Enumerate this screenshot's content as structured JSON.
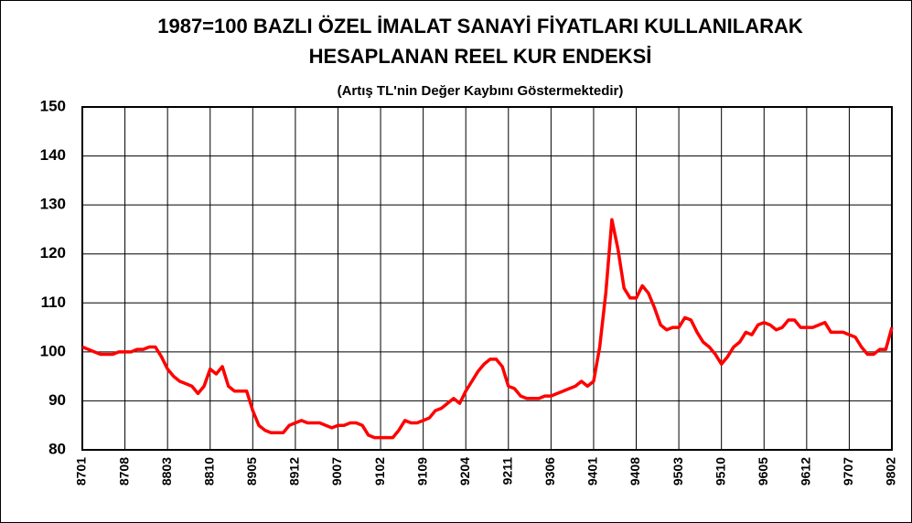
{
  "chart_data": {
    "type": "line",
    "title": [
      "1987=100 BAZLI ÖZEL İMALAT SANAYİ FİYATLARI KULLANILARAK",
      "HESAPLANAN REEL KUR ENDEKSİ"
    ],
    "subtitle": "(Artış TL'nin Değer Kaybını Göstermektedir)",
    "categories": [
      "8701",
      null,
      null,
      null,
      null,
      null,
      null,
      "8708",
      null,
      null,
      null,
      null,
      null,
      null,
      "8803",
      null,
      null,
      null,
      null,
      null,
      null,
      "8810",
      null,
      null,
      null,
      null,
      null,
      null,
      "8905",
      null,
      null,
      null,
      null,
      null,
      null,
      "8912",
      null,
      null,
      null,
      null,
      null,
      null,
      "9007",
      null,
      null,
      null,
      null,
      null,
      null,
      "9102",
      null,
      null,
      null,
      null,
      null,
      null,
      "9109",
      null,
      null,
      null,
      null,
      null,
      null,
      "9204",
      null,
      null,
      null,
      null,
      null,
      null,
      "9211",
      null,
      null,
      null,
      null,
      null,
      null,
      "9306",
      null,
      null,
      null,
      null,
      null,
      null,
      "9401",
      null,
      null,
      null,
      null,
      null,
      null,
      "9408",
      null,
      null,
      null,
      null,
      null,
      null,
      "9503",
      null,
      null,
      null,
      null,
      null,
      null,
      "9510",
      null,
      null,
      null,
      null,
      null,
      null,
      "9605",
      null,
      null,
      null,
      null,
      null,
      null,
      "9612",
      null,
      null,
      null,
      null,
      null,
      null,
      "9707",
      null,
      null,
      null,
      null,
      null,
      null,
      "9802"
    ],
    "series": [
      {
        "color": "#ff0000",
        "values": [
          101,
          100.5,
          100,
          99.5,
          99.5,
          99.5,
          100,
          100,
          100,
          100.5,
          100.5,
          101,
          101,
          99,
          96.5,
          95,
          94,
          93.5,
          93,
          91.5,
          93,
          96.5,
          95.5,
          97,
          93,
          92,
          92,
          92,
          88,
          85,
          84,
          83.5,
          83.5,
          83.5,
          85,
          85.5,
          86,
          85.5,
          85.5,
          85.5,
          85,
          84.5,
          85,
          85,
          85.5,
          85.5,
          85,
          83,
          82.5,
          82.5,
          82.5,
          82.5,
          84,
          86,
          85.5,
          85.5,
          86,
          86.5,
          88,
          88.5,
          89.5,
          90.5,
          89.5,
          92,
          94,
          96,
          97.5,
          98.5,
          98.5,
          97,
          93,
          92.5,
          91,
          90.5,
          90.5,
          90.5,
          91,
          91,
          91.5,
          92,
          92.5,
          93,
          94,
          93,
          94,
          101,
          112,
          127,
          121,
          113,
          111,
          111,
          113.5,
          112,
          109,
          105.5,
          104.5,
          105,
          105,
          107,
          106.5,
          104,
          102,
          101,
          99.5,
          97.5,
          99,
          101,
          102,
          104,
          103.5,
          105.5,
          106,
          105.5,
          104.5,
          105,
          106.5,
          106.5,
          105,
          105,
          105,
          105.5,
          106,
          104,
          104,
          104,
          103.5,
          103,
          101,
          99.5,
          99.5,
          100.5,
          100.5,
          105
        ]
      }
    ],
    "ylim": [
      80,
      150
    ],
    "yticks": [
      80,
      90,
      100,
      110,
      120,
      130,
      140,
      150
    ],
    "grid": true
  }
}
